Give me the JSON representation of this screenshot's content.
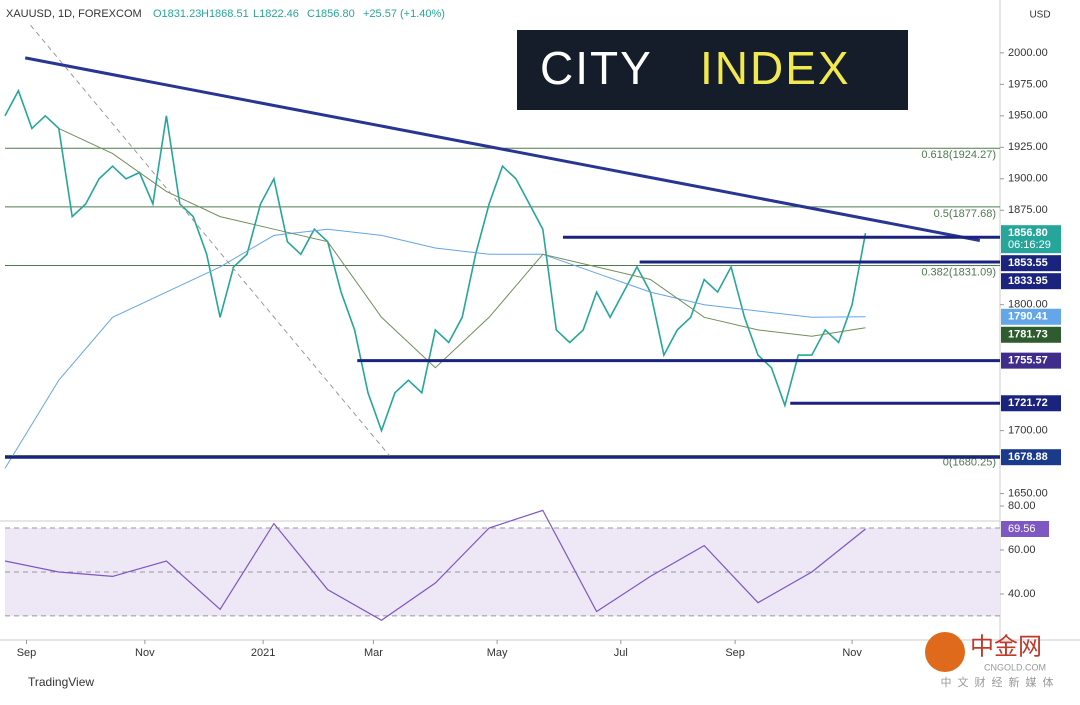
{
  "chart_data": {
    "type": "line",
    "header": "XAUUSD, 1D, FOREXCOM",
    "ohlc": [
      "O1831.23",
      "H1868.51",
      "L1822.46",
      "C1856.80",
      "+25.57 (+1.40%)"
    ],
    "currency": "USD",
    "logo": [
      "CITY",
      "INDEX"
    ],
    "footer": "TradingView",
    "watermark": [
      "中金网",
      "CNGOLD.COM",
      "中文财经新媒体"
    ],
    "xlim": [
      0,
      74
    ],
    "xticks": [
      {
        "value": 1.6,
        "label": "Sep"
      },
      {
        "value": 10.4,
        "label": "Nov"
      },
      {
        "value": 19.2,
        "label": "2021"
      },
      {
        "value": 27.4,
        "label": "Mar"
      },
      {
        "value": 36.6,
        "label": "May"
      },
      {
        "value": 45.8,
        "label": "Jul"
      },
      {
        "value": 54.3,
        "label": "Sep"
      },
      {
        "value": 63,
        "label": "Nov"
      }
    ],
    "ylim": [
      1629,
      2042
    ],
    "yticks": [
      {
        "value": 1650,
        "label": "1650.00"
      },
      {
        "value": 1700,
        "label": "1700.00"
      },
      {
        "value": 1800,
        "label": "1800.00"
      },
      {
        "value": 1875,
        "label": "1875.00"
      },
      {
        "value": 1900,
        "label": "1900.00"
      },
      {
        "value": 1925,
        "label": "1925.00"
      },
      {
        "value": 1950,
        "label": "1950.00"
      },
      {
        "value": 1975,
        "label": "1975.00"
      },
      {
        "value": 2000,
        "label": "2000.00"
      }
    ],
    "series": [
      {
        "name": "XAUUSD",
        "color": "#26a69a",
        "x": [
          0,
          1,
          2,
          3,
          4,
          5,
          6,
          7,
          8,
          9,
          10,
          11,
          12,
          13,
          14,
          15,
          16,
          17,
          18,
          19,
          20,
          21,
          22,
          23,
          24,
          25,
          26,
          27,
          28,
          29,
          30,
          31,
          32,
          33,
          34,
          35,
          36,
          37,
          38,
          39,
          40,
          41,
          42,
          43,
          44,
          45,
          46,
          47,
          48,
          49,
          50,
          51,
          52,
          53,
          54,
          55,
          56,
          57,
          58,
          59,
          60,
          61,
          62,
          63,
          64
        ],
        "values": [
          1950,
          1970,
          1940,
          1950,
          1940,
          1870,
          1880,
          1900,
          1910,
          1900,
          1905,
          1880,
          1950,
          1880,
          1870,
          1840,
          1790,
          1830,
          1840,
          1880,
          1900,
          1850,
          1840,
          1860,
          1850,
          1810,
          1780,
          1730,
          1700,
          1730,
          1740,
          1730,
          1780,
          1770,
          1790,
          1840,
          1880,
          1910,
          1900,
          1880,
          1860,
          1780,
          1770,
          1780,
          1810,
          1790,
          1810,
          1830,
          1810,
          1760,
          1780,
          1790,
          1820,
          1810,
          1830,
          1790,
          1760,
          1750,
          1720,
          1760,
          1760,
          1780,
          1770,
          1800,
          1856.8
        ]
      },
      {
        "name": "MA200",
        "color": "#64a6e8",
        "x": [
          0,
          4,
          8,
          12,
          16,
          20,
          24,
          28,
          32,
          36,
          40,
          44,
          48,
          52,
          56,
          60,
          64
        ],
        "values": [
          1670,
          1740,
          1790,
          1810,
          1830,
          1855,
          1860,
          1855,
          1845,
          1840,
          1840,
          1825,
          1810,
          1800,
          1795,
          1790,
          1790.41
        ]
      },
      {
        "name": "MA50",
        "color": "#6f8f5a",
        "x": [
          4,
          8,
          12,
          16,
          20,
          24,
          28,
          32,
          36,
          40,
          44,
          48,
          52,
          56,
          60,
          64
        ],
        "values": [
          1940,
          1920,
          1890,
          1870,
          1860,
          1850,
          1790,
          1750,
          1790,
          1840,
          1830,
          1820,
          1790,
          1780,
          1775,
          1781.73
        ]
      }
    ],
    "trendlines": [
      {
        "color": "#283593",
        "x": [
          1.5,
          72.5
        ],
        "y": [
          1996,
          1851
        ]
      },
      {
        "color": "#999999",
        "x": [
          1.9,
          28.6
        ],
        "y": [
          2022,
          1680
        ]
      }
    ],
    "fib_levels": [
      {
        "label": "0.618(1924.27)",
        "value": 1924.27
      },
      {
        "label": "0.5(1877.68)",
        "value": 1877.68
      },
      {
        "label": "0.382(1831.09)",
        "value": 1831.09
      },
      {
        "label": "0(1680.25)",
        "value": 1680.25
      }
    ],
    "levels": [
      {
        "value": 1853.55,
        "from": 41.5
      },
      {
        "value": 1833.95,
        "from": 47.2
      },
      {
        "value": 1755.57,
        "from": 26.2
      },
      {
        "value": 1721.72,
        "from": 58.4
      },
      {
        "value": 1678.88,
        "from": 0
      }
    ],
    "price_tags": [
      {
        "value": 1856.8,
        "label": "1856.80",
        "sub": "06:16:29",
        "color": "#26a69a"
      },
      {
        "value": 1853.55,
        "label": "1853.55",
        "color": "#1a237e"
      },
      {
        "value": 1833.95,
        "label": "1833.95",
        "color": "#1a237e"
      },
      {
        "value": 1790.41,
        "label": "1790.41",
        "color": "#64a6e8"
      },
      {
        "value": 1781.73,
        "label": "1781.73",
        "color": "#2e5c2e"
      },
      {
        "value": 1755.57,
        "label": "1755.57",
        "color": "#3f2d8c"
      },
      {
        "value": 1721.72,
        "label": "1721.72",
        "color": "#1a237e"
      },
      {
        "value": 1678.88,
        "label": "1678.88",
        "color": "#1a3a8c"
      }
    ],
    "rsi": {
      "color": "#7e57c2",
      "ylim": [
        23.6,
        87.3
      ],
      "yticks": [
        {
          "value": 40,
          "label": "40.00"
        },
        {
          "value": 60,
          "label": "60.00"
        },
        {
          "value": 80,
          "label": "80.00"
        }
      ],
      "bands": [
        30,
        50,
        70
      ],
      "x": [
        0,
        4,
        8,
        12,
        16,
        20,
        24,
        28,
        32,
        36,
        40,
        44,
        48,
        52,
        56,
        60,
        64
      ],
      "values": [
        55,
        50,
        48,
        55,
        33,
        72,
        42,
        28,
        45,
        70,
        78,
        32,
        48,
        62,
        36,
        50,
        69.56
      ],
      "tag": {
        "value": 69.56,
        "label": "69.56"
      }
    }
  }
}
